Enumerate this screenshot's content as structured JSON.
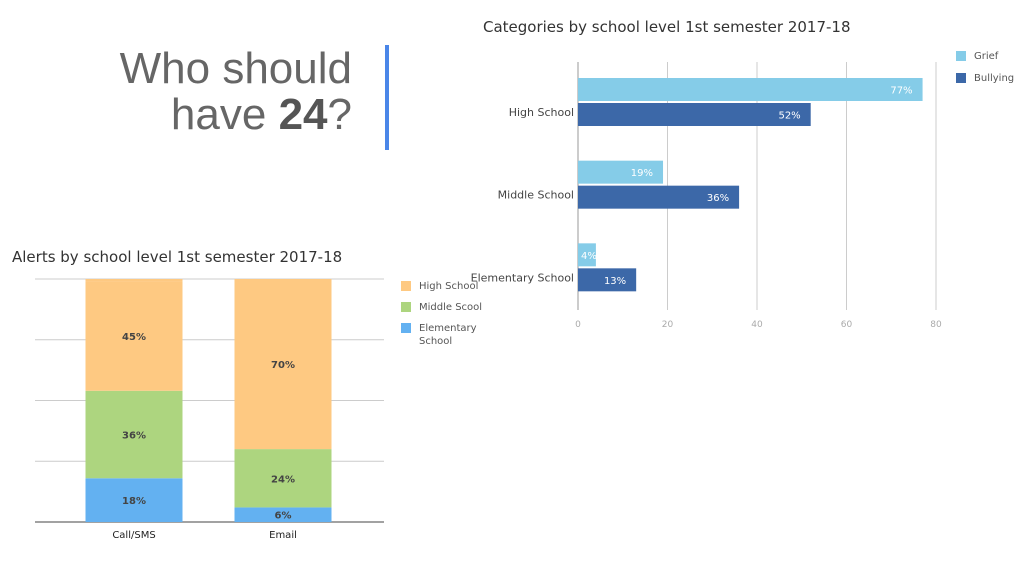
{
  "headline": {
    "line1": "Who should",
    "line2_prefix": "have ",
    "line2_bold": "24",
    "line2_suffix": "?"
  },
  "colors": {
    "accent": "#4a86e8",
    "grief": "#85cce8",
    "bullying": "#3c68a8",
    "high_school": "#fec982",
    "middle_school": "#add57f",
    "elementary_school": "#63b1f1"
  },
  "chart_data": [
    {
      "type": "bar",
      "orientation": "horizontal",
      "title": "Categories by school level 1st semester 2017-18",
      "categories": [
        "High School",
        "Middle School",
        "Elementary School"
      ],
      "series": [
        {
          "name": "Grief",
          "values": [
            77,
            19,
            4
          ],
          "labels": [
            "77%",
            "19%",
            "4%"
          ]
        },
        {
          "name": "Bullying",
          "values": [
            52,
            36,
            13
          ],
          "labels": [
            "52%",
            "36%",
            "13%"
          ]
        }
      ],
      "xlim": [
        0,
        80
      ],
      "xticks": [
        "0",
        "20",
        "40",
        "60",
        "80"
      ],
      "grid": true,
      "legend": "top-right"
    },
    {
      "type": "bar",
      "stacked": true,
      "title": "Alerts by school level 1st semester 2017-18",
      "categories": [
        "Call/SMS",
        "Email"
      ],
      "series": [
        {
          "name": "High School",
          "values": [
            45,
            70
          ],
          "labels": [
            "45%",
            "70%"
          ]
        },
        {
          "name": "Middle Scool",
          "values": [
            36,
            24
          ],
          "labels": [
            "36%",
            "24%"
          ]
        },
        {
          "name": "Elementary School",
          "values": [
            18,
            6
          ],
          "labels": [
            "18%",
            "6%"
          ]
        }
      ],
      "ylim": [
        0,
        100
      ],
      "grid": true,
      "legend": "right"
    }
  ]
}
